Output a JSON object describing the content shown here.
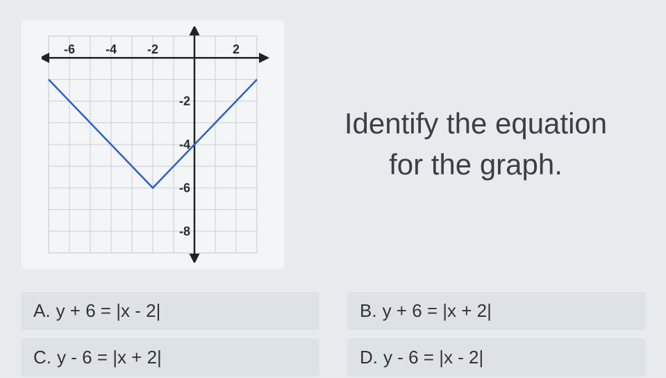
{
  "graph": {
    "type": "line",
    "grid_color": "#c9cfd6",
    "axis_color": "#222222",
    "curve_color": "#2b5fc8",
    "background_color": "#f3f5f7",
    "curve_width": 2.5,
    "axis_width": 2.5,
    "grid_width": 1,
    "xlim": [
      -7,
      3
    ],
    "ylim": [
      -9,
      1
    ],
    "xtick_labels": [
      "-6",
      "-4",
      "-2",
      "2"
    ],
    "xtick_positions": [
      -6,
      -4,
      -2,
      2
    ],
    "ytick_labels": [
      "-2",
      "-4",
      "-6",
      "-8"
    ],
    "ytick_positions": [
      -2,
      -4,
      -6,
      -8
    ],
    "tick_fontsize": 18,
    "tick_color": "#2a2a2a",
    "vertex": [
      -2,
      -6
    ],
    "points": [
      [
        -7,
        -1
      ],
      [
        -2,
        -6
      ],
      [
        3,
        -1
      ]
    ],
    "arrows": true
  },
  "question": {
    "line1": "Identify the equation",
    "line2": "for the graph.",
    "fontsize": 42,
    "color": "#3a3f44"
  },
  "choices": [
    {
      "letter": "A.",
      "text": "y + 6 = |x - 2|"
    },
    {
      "letter": "B.",
      "text": "y + 6 = |x + 2|"
    },
    {
      "letter": "C.",
      "text": "y - 6 = |x + 2|"
    },
    {
      "letter": "D.",
      "text": "y - 6 = |x - 2|"
    }
  ],
  "choice_style": {
    "background_color": "#dde2e7",
    "fontsize": 26,
    "color": "#333333"
  }
}
